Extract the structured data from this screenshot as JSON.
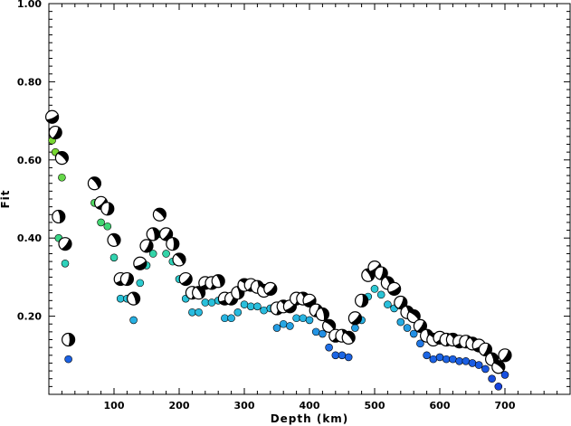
{
  "chart_data": {
    "type": "scatter",
    "xlabel": "Depth (km)",
    "ylabel": "Fit",
    "xlim": [
      0,
      800
    ],
    "ylim": [
      0.0,
      1.0
    ],
    "x_ticks": [
      100,
      200,
      300,
      400,
      500,
      600,
      700
    ],
    "x_tick_labels": [
      "100",
      "200",
      "300",
      "400",
      "500",
      "600",
      "700"
    ],
    "y_ticks": [
      0.2,
      0.4,
      0.6,
      0.8,
      1.0
    ],
    "y_tick_labels": [
      "0.20",
      "0.40",
      "0.60",
      "0.80",
      "1.00"
    ],
    "grid": false,
    "color_scale": {
      "low_fit": "#1f5fe0",
      "mid_fit": "#29c6d6",
      "high_fit": "#5fd63a"
    },
    "series": [
      {
        "marker": "filled circle, colored by fit",
        "points": [
          {
            "x": 5,
            "y": 0.65
          },
          {
            "x": 10,
            "y": 0.62
          },
          {
            "x": 15,
            "y": 0.4
          },
          {
            "x": 20,
            "y": 0.555
          },
          {
            "x": 25,
            "y": 0.335
          },
          {
            "x": 30,
            "y": 0.09
          },
          {
            "x": 70,
            "y": 0.49
          },
          {
            "x": 80,
            "y": 0.44
          },
          {
            "x": 90,
            "y": 0.43
          },
          {
            "x": 100,
            "y": 0.35
          },
          {
            "x": 110,
            "y": 0.245
          },
          {
            "x": 120,
            "y": 0.245
          },
          {
            "x": 130,
            "y": 0.19
          },
          {
            "x": 140,
            "y": 0.285
          },
          {
            "x": 150,
            "y": 0.33
          },
          {
            "x": 160,
            "y": 0.36
          },
          {
            "x": 170,
            "y": 0.41
          },
          {
            "x": 180,
            "y": 0.36
          },
          {
            "x": 190,
            "y": 0.34
          },
          {
            "x": 200,
            "y": 0.295
          },
          {
            "x": 210,
            "y": 0.245
          },
          {
            "x": 220,
            "y": 0.21
          },
          {
            "x": 230,
            "y": 0.21
          },
          {
            "x": 240,
            "y": 0.235
          },
          {
            "x": 250,
            "y": 0.235
          },
          {
            "x": 260,
            "y": 0.24
          },
          {
            "x": 270,
            "y": 0.195
          },
          {
            "x": 280,
            "y": 0.195
          },
          {
            "x": 290,
            "y": 0.21
          },
          {
            "x": 300,
            "y": 0.23
          },
          {
            "x": 310,
            "y": 0.225
          },
          {
            "x": 320,
            "y": 0.225
          },
          {
            "x": 330,
            "y": 0.215
          },
          {
            "x": 340,
            "y": 0.22
          },
          {
            "x": 350,
            "y": 0.17
          },
          {
            "x": 360,
            "y": 0.18
          },
          {
            "x": 370,
            "y": 0.175
          },
          {
            "x": 380,
            "y": 0.195
          },
          {
            "x": 390,
            "y": 0.195
          },
          {
            "x": 400,
            "y": 0.19
          },
          {
            "x": 410,
            "y": 0.16
          },
          {
            "x": 420,
            "y": 0.155
          },
          {
            "x": 430,
            "y": 0.12
          },
          {
            "x": 440,
            "y": 0.1
          },
          {
            "x": 450,
            "y": 0.1
          },
          {
            "x": 460,
            "y": 0.095
          },
          {
            "x": 470,
            "y": 0.17
          },
          {
            "x": 480,
            "y": 0.19
          },
          {
            "x": 490,
            "y": 0.25
          },
          {
            "x": 500,
            "y": 0.27
          },
          {
            "x": 510,
            "y": 0.255
          },
          {
            "x": 520,
            "y": 0.23
          },
          {
            "x": 530,
            "y": 0.22
          },
          {
            "x": 540,
            "y": 0.185
          },
          {
            "x": 550,
            "y": 0.17
          },
          {
            "x": 560,
            "y": 0.155
          },
          {
            "x": 570,
            "y": 0.13
          },
          {
            "x": 580,
            "y": 0.1
          },
          {
            "x": 590,
            "y": 0.09
          },
          {
            "x": 600,
            "y": 0.095
          },
          {
            "x": 610,
            "y": 0.09
          },
          {
            "x": 620,
            "y": 0.09
          },
          {
            "x": 630,
            "y": 0.085
          },
          {
            "x": 640,
            "y": 0.085
          },
          {
            "x": 650,
            "y": 0.08
          },
          {
            "x": 660,
            "y": 0.075
          },
          {
            "x": 670,
            "y": 0.065
          },
          {
            "x": 680,
            "y": 0.04
          },
          {
            "x": 690,
            "y": 0.02
          },
          {
            "x": 700,
            "y": 0.05
          }
        ]
      },
      {
        "marker": "focal mechanism beachball",
        "points": [
          {
            "x": 5,
            "y": 0.71
          },
          {
            "x": 10,
            "y": 0.67
          },
          {
            "x": 15,
            "y": 0.455
          },
          {
            "x": 20,
            "y": 0.605
          },
          {
            "x": 25,
            "y": 0.385
          },
          {
            "x": 30,
            "y": 0.14
          },
          {
            "x": 70,
            "y": 0.54
          },
          {
            "x": 80,
            "y": 0.49
          },
          {
            "x": 90,
            "y": 0.475
          },
          {
            "x": 100,
            "y": 0.395
          },
          {
            "x": 110,
            "y": 0.295
          },
          {
            "x": 120,
            "y": 0.295
          },
          {
            "x": 130,
            "y": 0.245
          },
          {
            "x": 140,
            "y": 0.335
          },
          {
            "x": 150,
            "y": 0.38
          },
          {
            "x": 160,
            "y": 0.41
          },
          {
            "x": 170,
            "y": 0.46
          },
          {
            "x": 180,
            "y": 0.41
          },
          {
            "x": 190,
            "y": 0.385
          },
          {
            "x": 200,
            "y": 0.345
          },
          {
            "x": 210,
            "y": 0.295
          },
          {
            "x": 220,
            "y": 0.26
          },
          {
            "x": 230,
            "y": 0.26
          },
          {
            "x": 240,
            "y": 0.285
          },
          {
            "x": 250,
            "y": 0.285
          },
          {
            "x": 260,
            "y": 0.29
          },
          {
            "x": 270,
            "y": 0.245
          },
          {
            "x": 280,
            "y": 0.245
          },
          {
            "x": 290,
            "y": 0.26
          },
          {
            "x": 300,
            "y": 0.28
          },
          {
            "x": 310,
            "y": 0.28
          },
          {
            "x": 320,
            "y": 0.275
          },
          {
            "x": 330,
            "y": 0.265
          },
          {
            "x": 340,
            "y": 0.27
          },
          {
            "x": 350,
            "y": 0.22
          },
          {
            "x": 360,
            "y": 0.225
          },
          {
            "x": 370,
            "y": 0.225
          },
          {
            "x": 380,
            "y": 0.245
          },
          {
            "x": 390,
            "y": 0.245
          },
          {
            "x": 400,
            "y": 0.24
          },
          {
            "x": 410,
            "y": 0.215
          },
          {
            "x": 420,
            "y": 0.205
          },
          {
            "x": 430,
            "y": 0.175
          },
          {
            "x": 440,
            "y": 0.15
          },
          {
            "x": 450,
            "y": 0.15
          },
          {
            "x": 460,
            "y": 0.145
          },
          {
            "x": 470,
            "y": 0.195
          },
          {
            "x": 480,
            "y": 0.24
          },
          {
            "x": 490,
            "y": 0.305
          },
          {
            "x": 500,
            "y": 0.325
          },
          {
            "x": 510,
            "y": 0.31
          },
          {
            "x": 520,
            "y": 0.285
          },
          {
            "x": 530,
            "y": 0.27
          },
          {
            "x": 540,
            "y": 0.235
          },
          {
            "x": 550,
            "y": 0.21
          },
          {
            "x": 560,
            "y": 0.2
          },
          {
            "x": 570,
            "y": 0.175
          },
          {
            "x": 580,
            "y": 0.15
          },
          {
            "x": 590,
            "y": 0.14
          },
          {
            "x": 600,
            "y": 0.145
          },
          {
            "x": 610,
            "y": 0.14
          },
          {
            "x": 620,
            "y": 0.14
          },
          {
            "x": 630,
            "y": 0.135
          },
          {
            "x": 640,
            "y": 0.135
          },
          {
            "x": 650,
            "y": 0.13
          },
          {
            "x": 660,
            "y": 0.125
          },
          {
            "x": 670,
            "y": 0.115
          },
          {
            "x": 680,
            "y": 0.09
          },
          {
            "x": 690,
            "y": 0.07
          },
          {
            "x": 700,
            "y": 0.1
          }
        ]
      }
    ]
  }
}
